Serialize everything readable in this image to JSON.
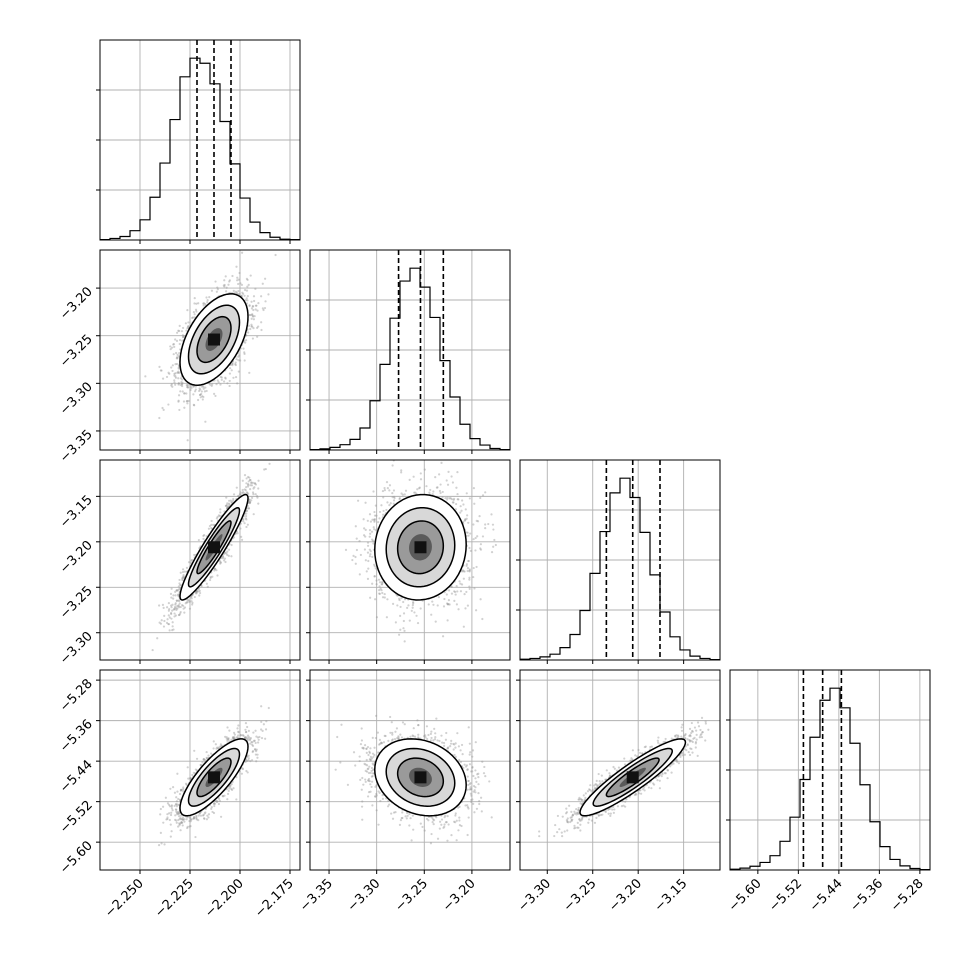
{
  "chart_data": {
    "type": "corner",
    "parameters": [
      {
        "range": [
          -2.27,
          -2.17
        ],
        "ticks": [
          "−2.250",
          "−2.225",
          "−2.200",
          "−2.175"
        ],
        "tick_values": [
          -2.25,
          -2.225,
          -2.2,
          -2.175
        ],
        "quantiles": [
          -2.2215,
          -2.213,
          -2.2045
        ],
        "mean": -2.213,
        "sd": 0.0085,
        "hist": {
          "edges_start": -2.27,
          "bin_width": 0.005,
          "counts": [
            1,
            4,
            9,
            24,
            52,
            110,
            198,
            310,
            420,
            468,
            455,
            402,
            305,
            196,
            108,
            46,
            19,
            7,
            2,
            1
          ]
        }
      },
      {
        "range": [
          -3.37,
          -3.16
        ],
        "ticks": [
          "−3.35",
          "−3.30",
          "−3.25",
          "−3.20"
        ],
        "tick_values": [
          -3.35,
          -3.3,
          -3.25,
          -3.2
        ],
        "quantiles": [
          -3.277,
          -3.254,
          -3.23
        ],
        "mean": -3.254,
        "sd": 0.024,
        "hist": {
          "edges_start": -3.37,
          "bin_width": 0.0105,
          "counts": [
            1,
            3,
            7,
            14,
            28,
            58,
            130,
            226,
            348,
            446,
            480,
            430,
            350,
            236,
            140,
            68,
            30,
            13,
            4,
            1
          ]
        }
      },
      {
        "range": [
          -3.33,
          -3.11
        ],
        "ticks": [
          "−3.30",
          "−3.25",
          "−3.20",
          "−3.15"
        ],
        "tick_values": [
          -3.3,
          -3.25,
          -3.2,
          -3.15
        ],
        "quantiles": [
          -3.235,
          -3.206,
          -3.176
        ],
        "mean": -3.206,
        "sd": 0.029,
        "hist": {
          "edges_start": -3.33,
          "bin_width": 0.011,
          "counts": [
            2,
            4,
            8,
            15,
            32,
            66,
            128,
            224,
            332,
            432,
            470,
            420,
            330,
            220,
            124,
            60,
            26,
            10,
            4,
            1
          ]
        }
      },
      {
        "range": [
          -5.655,
          -5.26
        ],
        "ticks": [
          "−5.60",
          "−5.52",
          "−5.44",
          "−5.36",
          "−5.28"
        ],
        "tick_values": [
          -5.6,
          -5.52,
          -5.44,
          -5.36,
          -5.28
        ],
        "quantiles": [
          -5.51,
          -5.472,
          -5.435
        ],
        "mean": -5.472,
        "sd": 0.038,
        "hist": {
          "edges_start": -5.655,
          "bin_width": 0.01975,
          "counts": [
            2,
            5,
            10,
            20,
            38,
            76,
            140,
            240,
            352,
            450,
            482,
            430,
            336,
            226,
            128,
            62,
            28,
            11,
            4,
            1
          ]
        }
      }
    ],
    "correlations": [
      [
        1.0,
        0.5,
        0.93,
        0.8
      ],
      [
        0.5,
        1.0,
        0.05,
        -0.2
      ],
      [
        0.93,
        0.05,
        1.0,
        0.91
      ],
      [
        0.8,
        -0.2,
        0.91,
        1.0
      ]
    ],
    "contour_levels_sigma": [
      0.5,
      1.0,
      1.5,
      2.0
    ],
    "samples_shown": 2500,
    "grid": true,
    "title": "",
    "axis_labels": []
  }
}
